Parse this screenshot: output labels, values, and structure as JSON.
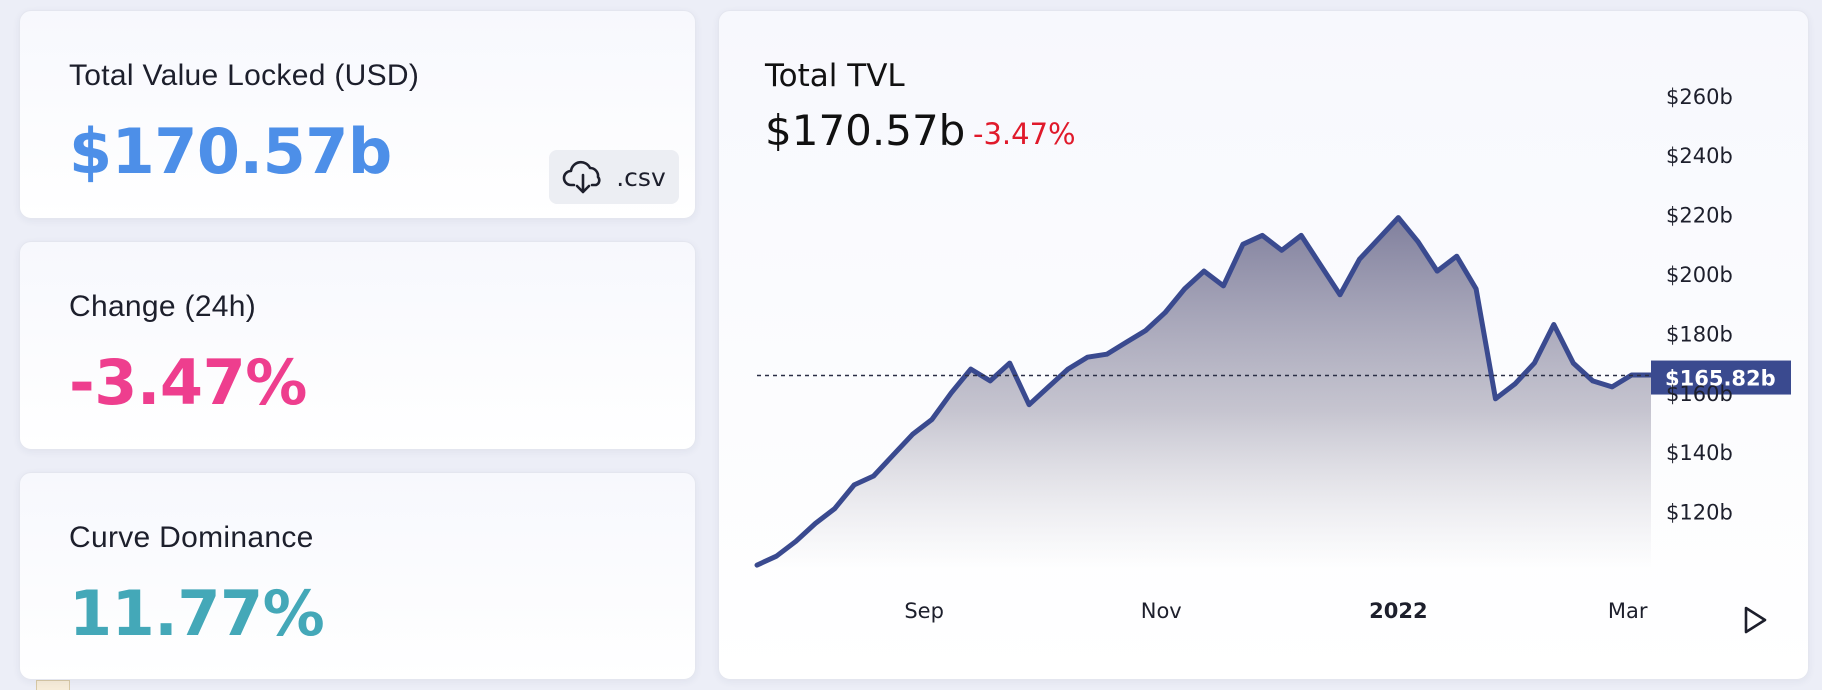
{
  "stats": {
    "tvl": {
      "label": "Total Value Locked (USD)",
      "value": "$170.57b"
    },
    "change": {
      "label": "Change (24h)",
      "value": "-3.47%"
    },
    "dominance": {
      "label": "Curve Dominance",
      "value": "11.77%"
    }
  },
  "download": {
    "label": ".csv",
    "icon": "cloud-download-icon"
  },
  "chart": {
    "title": "Total TVL",
    "value": "$170.57b",
    "change": "-3.47%",
    "play_icon": "play-icon"
  },
  "colors": {
    "tvl": "#4d8fe8",
    "change": "#ee3e8e",
    "dominance": "#44a8b8",
    "line": "#3a4a8f",
    "negative": "#e01a2b"
  },
  "chart_data": {
    "type": "area",
    "title": "Total TVL",
    "xlabel": "",
    "ylabel": "",
    "ylim": [
      100,
      265
    ],
    "y_unit": "$ billions",
    "yticks": [
      "$120b",
      "$140b",
      "$160b",
      "$180b",
      "$200b",
      "$220b",
      "$240b",
      "$260b"
    ],
    "ytick_values": [
      120,
      140,
      160,
      180,
      200,
      220,
      240,
      260
    ],
    "xticks": [
      "Sep",
      "Nov",
      "2022",
      "Mar"
    ],
    "xtick_dates": [
      "2021-09-01",
      "2021-11-01",
      "2022-01-01",
      "2022-03-01"
    ],
    "grid": false,
    "crosshair": {
      "value": 165.82,
      "label": "$165.82b"
    },
    "series": [
      {
        "x": [
          "2021-07-20",
          "2021-07-25",
          "2021-07-30",
          "2021-08-04",
          "2021-08-09",
          "2021-08-14",
          "2021-08-19",
          "2021-08-24",
          "2021-08-29",
          "2021-09-03",
          "2021-09-08",
          "2021-09-13",
          "2021-09-18",
          "2021-09-23",
          "2021-09-28",
          "2021-10-03",
          "2021-10-08",
          "2021-10-13",
          "2021-10-18",
          "2021-10-23",
          "2021-10-28",
          "2021-11-02",
          "2021-11-07",
          "2021-11-12",
          "2021-11-17",
          "2021-11-22",
          "2021-11-27",
          "2021-12-02",
          "2021-12-07",
          "2021-12-12",
          "2021-12-17",
          "2021-12-22",
          "2021-12-27",
          "2022-01-01",
          "2022-01-06",
          "2022-01-11",
          "2022-01-16",
          "2022-01-21",
          "2022-01-26",
          "2022-01-31",
          "2022-02-05",
          "2022-02-10",
          "2022-02-15",
          "2022-02-20",
          "2022-02-25",
          "2022-03-02",
          "2022-03-07"
        ],
        "values": [
          102,
          105,
          110,
          116,
          121,
          129,
          132,
          139,
          146,
          151,
          160,
          168,
          164,
          170,
          156,
          162,
          168,
          172,
          173,
          177,
          181,
          187,
          195,
          201,
          196,
          210,
          213,
          208,
          213,
          203,
          193,
          205,
          212,
          219,
          211,
          201,
          206,
          195,
          158,
          163,
          170,
          183,
          170,
          164,
          162,
          166,
          166
        ]
      }
    ]
  }
}
